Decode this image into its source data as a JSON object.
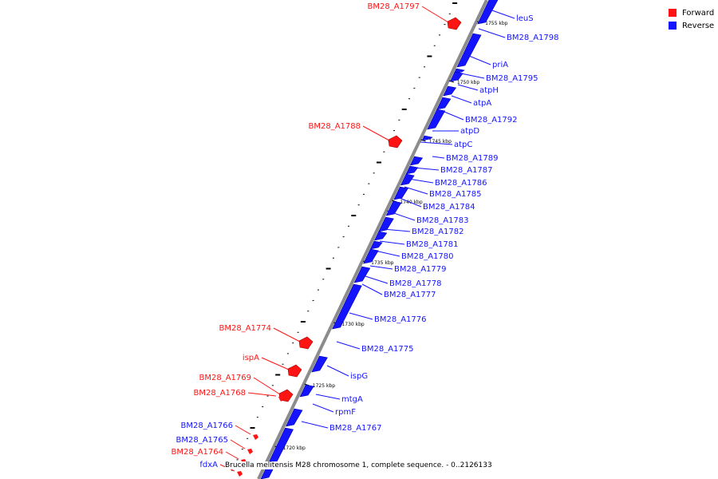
{
  "colors": {
    "forward": "#ff1414",
    "reverse": "#1414ff",
    "backbone": "#8c8c8c",
    "tick": "#000000"
  },
  "legend": {
    "forward_label": "Forward",
    "reverse_label": "Reverse"
  },
  "caption": "Brucella melitensis M28 chromosome 1, complete sequence. - 0..2126133",
  "kbp_labels": [
    "1755 kbp",
    "1750 kbp",
    "1745 kbp",
    "1740 kbp",
    "1735 kbp",
    "1730 kbp",
    "1725 kbp",
    "1720 kbp"
  ],
  "forward_genes": [
    "BM28_A1797",
    "BM28_A1788",
    "BM28_A1774",
    "ispA",
    "BM28_A1769",
    "BM28_A1768",
    "BM28_A1766",
    "BM28_A1765",
    "BM28_A1764",
    "fdxA"
  ],
  "reverse_genes": [
    "leuS",
    "BM28_A1798",
    "priA",
    "BM28_A1795",
    "atpH",
    "atpA",
    "BM28_A1792",
    "atpD",
    "atpC",
    "BM28_A1789",
    "BM28_A1787",
    "BM28_A1786",
    "BM28_A1785",
    "BM28_A1784",
    "BM28_A1783",
    "BM28_A1782",
    "BM28_A1781",
    "BM28_A1780",
    "BM28_A1779",
    "BM28_A1778",
    "BM28_A1777",
    "BM28_A1776",
    "BM28_A1775",
    "ispG",
    "mtgA",
    "rpmF",
    "BM28_A1767"
  ]
}
